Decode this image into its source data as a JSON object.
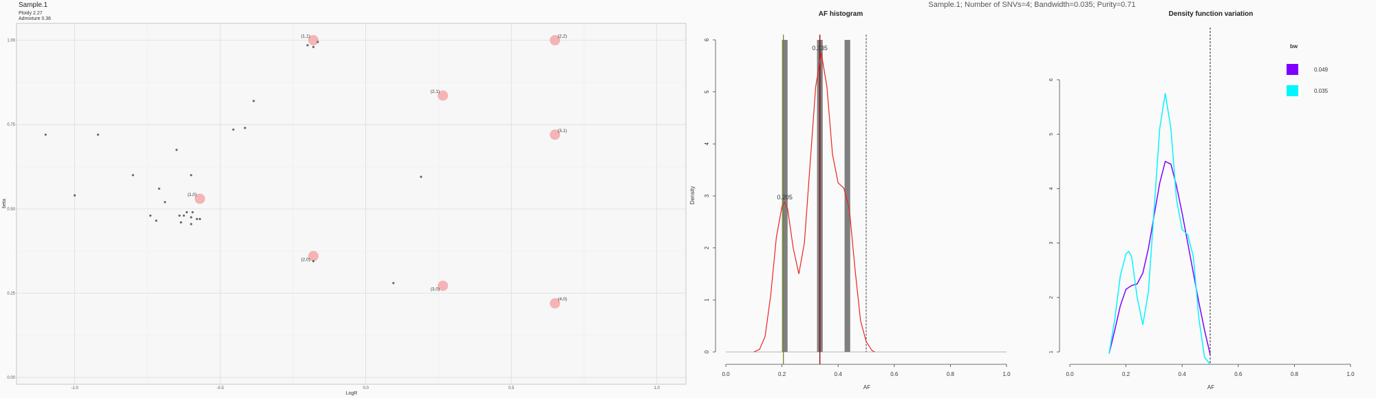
{
  "main_title": "Sample.1; Number of SNVs=4; Bandwidth=0.035; Purity=0.71",
  "colors": {
    "background": "#fafafa",
    "grid": "#dddddd",
    "points": "#666666",
    "model_points": "#f4a8aa",
    "histogram_bars": "#7f7f7f",
    "density_red": "#e8231f",
    "density_purple": "#7f00ff",
    "density_cyan": "#00f5ff",
    "marker_green": "#6b8e23",
    "marker_darkred": "#8b0000"
  },
  "chart_data": [
    {
      "type": "scatter",
      "title": "Sample.1",
      "subtitle_lines": [
        "Ploidy 2.27",
        "Admixture 0.36"
      ],
      "xlabel": "LogR",
      "ylabel": "beta",
      "xlim": [
        -1.2,
        1.1
      ],
      "ylim": [
        -0.02,
        1.05
      ],
      "xticks": [
        -1.0,
        -0.5,
        0.0,
        0.5,
        1.0
      ],
      "yticks": [
        0.0,
        0.25,
        0.5,
        0.75,
        1.0
      ],
      "xtick_labels": [
        "-1.0",
        "-0.5",
        "0.0",
        "0.5",
        "1.0"
      ],
      "ytick_labels": [
        "0.00",
        "0.25",
        "0.50",
        "0.75",
        "1.00"
      ],
      "grid": true,
      "observed_points": [
        {
          "x": -1.1,
          "y": 0.72
        },
        {
          "x": -1.0,
          "y": 0.54
        },
        {
          "x": -0.92,
          "y": 0.72
        },
        {
          "x": -0.8,
          "y": 0.6
        },
        {
          "x": -0.74,
          "y": 0.48
        },
        {
          "x": -0.72,
          "y": 0.465
        },
        {
          "x": -0.71,
          "y": 0.56
        },
        {
          "x": -0.69,
          "y": 0.52
        },
        {
          "x": -0.65,
          "y": 0.675
        },
        {
          "x": -0.64,
          "y": 0.48
        },
        {
          "x": -0.635,
          "y": 0.46
        },
        {
          "x": -0.625,
          "y": 0.48
        },
        {
          "x": -0.615,
          "y": 0.49
        },
        {
          "x": -0.6,
          "y": 0.6
        },
        {
          "x": -0.6,
          "y": 0.475
        },
        {
          "x": -0.6,
          "y": 0.455
        },
        {
          "x": -0.595,
          "y": 0.49
        },
        {
          "x": -0.58,
          "y": 0.47
        },
        {
          "x": -0.57,
          "y": 0.47
        },
        {
          "x": -0.455,
          "y": 0.735
        },
        {
          "x": -0.415,
          "y": 0.74
        },
        {
          "x": -0.385,
          "y": 0.82
        },
        {
          "x": -0.2,
          "y": 0.985
        },
        {
          "x": -0.18,
          "y": 0.98
        },
        {
          "x": -0.165,
          "y": 0.995
        },
        {
          "x": -0.18,
          "y": 0.345
        },
        {
          "x": 0.095,
          "y": 0.28
        },
        {
          "x": 0.19,
          "y": 0.595
        }
      ],
      "model_points": [
        {
          "x": -0.18,
          "y": 1.0,
          "label": "(1,1)"
        },
        {
          "x": 0.65,
          "y": 1.0,
          "label": "(2,2)"
        },
        {
          "x": 0.265,
          "y": 0.836,
          "label": "(2,1)"
        },
        {
          "x": 0.65,
          "y": 0.72,
          "label": "(3,1)"
        },
        {
          "x": -0.57,
          "y": 0.53,
          "label": "(1,0)"
        },
        {
          "x": -0.18,
          "y": 0.36,
          "label": "(2,0)"
        },
        {
          "x": 0.265,
          "y": 0.272,
          "label": "(3,0)"
        },
        {
          "x": 0.65,
          "y": 0.22,
          "label": "(4,0)"
        }
      ]
    },
    {
      "type": "bar",
      "title": "AF histogram",
      "xlabel": "AF",
      "ylabel": "Density",
      "xlim": [
        0,
        1
      ],
      "ylim": [
        0,
        6
      ],
      "xticks": [
        0,
        0.2,
        0.4,
        0.6,
        0.8,
        1.0
      ],
      "yticks": [
        0,
        1,
        2,
        3,
        4,
        5,
        6
      ],
      "xtick_labels": [
        "0.0",
        "0.2",
        "0.4",
        "0.6",
        "0.8",
        "1.0"
      ],
      "ytick_labels": [
        "0",
        "1",
        "2",
        "3",
        "4",
        "5",
        "6"
      ],
      "bars": [
        {
          "x": 0.21,
          "width": 0.02,
          "height": 6
        },
        {
          "x": 0.335,
          "width": 0.02,
          "height": 6
        },
        {
          "x": 0.433,
          "width": 0.02,
          "height": 6
        }
      ],
      "density_curve": {
        "x": [
          0.1,
          0.12,
          0.14,
          0.16,
          0.18,
          0.2,
          0.21,
          0.22,
          0.24,
          0.26,
          0.28,
          0.3,
          0.32,
          0.34,
          0.36,
          0.38,
          0.4,
          0.42,
          0.44,
          0.46,
          0.48,
          0.5,
          0.52,
          0.53
        ],
        "y": [
          0.0,
          0.05,
          0.3,
          1.1,
          2.2,
          2.8,
          2.88,
          2.75,
          2.0,
          1.5,
          2.1,
          3.6,
          5.1,
          5.75,
          5.1,
          3.8,
          3.25,
          3.15,
          2.75,
          1.6,
          0.6,
          0.2,
          0.03,
          0.0
        ]
      },
      "peak_labels": [
        {
          "x": 0.21,
          "y": 2.88,
          "label": "0.205"
        },
        {
          "x": 0.335,
          "y": 5.75,
          "label": "0.335"
        }
      ],
      "vlines": [
        {
          "x": 0.205,
          "style": "solid",
          "color_key": "marker_green"
        },
        {
          "x": 0.335,
          "style": "solid",
          "color_key": "marker_darkred"
        },
        {
          "x": 0.5,
          "style": "dashed",
          "color_key": "points"
        }
      ]
    },
    {
      "type": "line",
      "title": "Density function variation",
      "xlabel": "AF",
      "ylabel": "",
      "xlim": [
        0,
        1
      ],
      "ylim": [
        1,
        6
      ],
      "xticks": [
        0,
        0.2,
        0.4,
        0.6,
        0.8,
        1.0
      ],
      "yticks": [
        1,
        2,
        3,
        4,
        5,
        6
      ],
      "xtick_labels": [
        "0.0",
        "0.2",
        "0.4",
        "0.6",
        "0.8",
        "1.0"
      ],
      "ytick_labels": [
        "1",
        "2",
        "3",
        "4",
        "5",
        "6"
      ],
      "legend": {
        "title": "bw",
        "position": "top-right"
      },
      "vlines": [
        {
          "x": 0.5,
          "style": "dashed"
        }
      ],
      "series": [
        {
          "name": "0.049",
          "color_key": "density_purple",
          "x": [
            0.14,
            0.16,
            0.18,
            0.2,
            0.22,
            0.24,
            0.26,
            0.28,
            0.3,
            0.32,
            0.34,
            0.36,
            0.38,
            0.4,
            0.42,
            0.44,
            0.46,
            0.48,
            0.5
          ],
          "y": [
            0.97,
            1.4,
            1.85,
            2.15,
            2.22,
            2.25,
            2.45,
            2.9,
            3.5,
            4.1,
            4.5,
            4.45,
            4.05,
            3.55,
            3.0,
            2.45,
            1.9,
            1.4,
            0.95
          ]
        },
        {
          "name": "0.035",
          "color_key": "density_cyan",
          "x": [
            0.14,
            0.16,
            0.18,
            0.2,
            0.21,
            0.22,
            0.24,
            0.26,
            0.28,
            0.3,
            0.32,
            0.34,
            0.36,
            0.38,
            0.4,
            0.42,
            0.44,
            0.46,
            0.48,
            0.5
          ],
          "y": [
            0.97,
            1.6,
            2.4,
            2.8,
            2.85,
            2.75,
            2.0,
            1.5,
            2.1,
            3.6,
            5.1,
            5.75,
            5.1,
            3.8,
            3.25,
            3.15,
            2.75,
            1.6,
            0.9,
            0.5
          ]
        }
      ]
    }
  ]
}
